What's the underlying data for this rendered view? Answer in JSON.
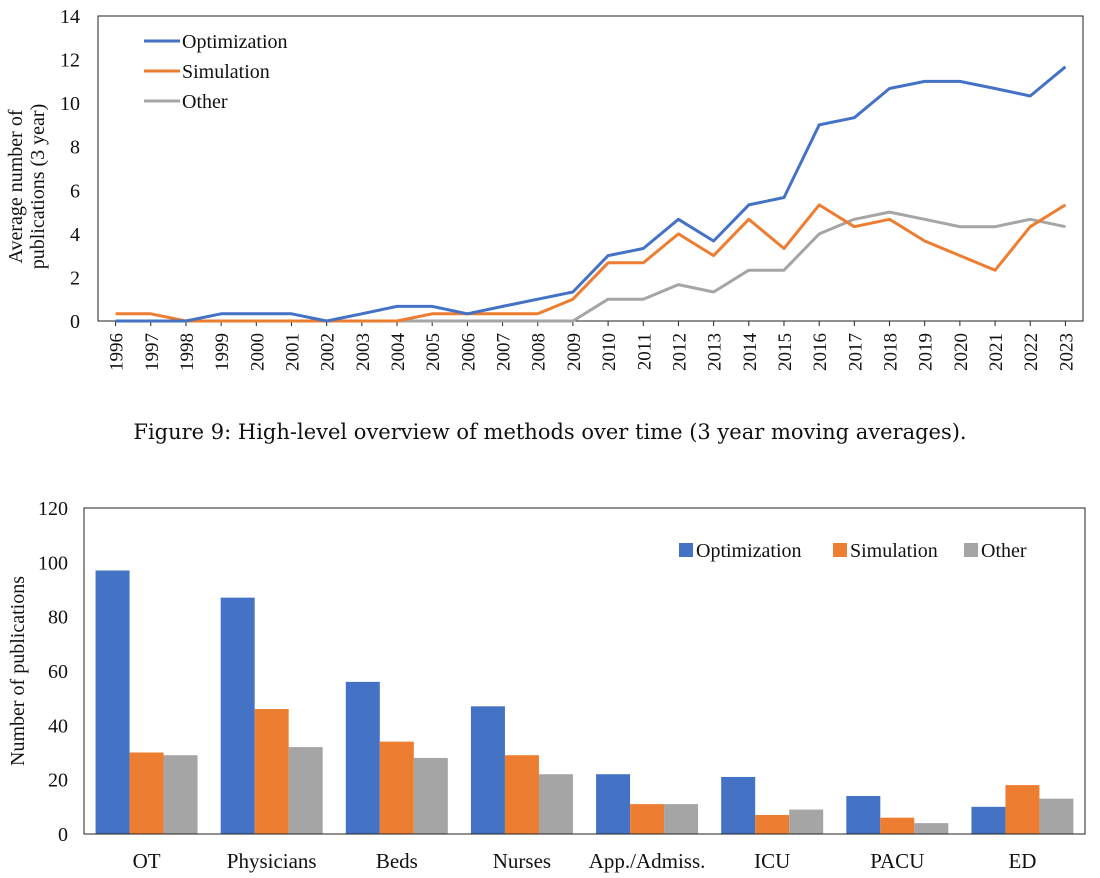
{
  "caption": "Figure 9: High-level overview of methods over time (3 year moving averages).",
  "colors": {
    "optimization": "#4472C4",
    "simulation": "#ED7D31",
    "other": "#A5A5A5"
  },
  "chart_data": [
    {
      "type": "line",
      "title": "",
      "xlabel": "",
      "ylabel": "Average number of publications (3 year)",
      "ylabel_lines": [
        "Average number of",
        "publications (3 year)"
      ],
      "ylim": [
        0,
        14
      ],
      "yticks": [
        0,
        2,
        4,
        6,
        8,
        10,
        12,
        14
      ],
      "legend_position": "top-left",
      "grid": false,
      "x": [
        "1996",
        "1997",
        "1998",
        "1999",
        "2000",
        "2001",
        "2002",
        "2003",
        "2004",
        "2005",
        "2006",
        "2007",
        "2008",
        "2009",
        "2010",
        "2011",
        "2012",
        "2013",
        "2014",
        "2015",
        "2016",
        "2017",
        "2018",
        "2019",
        "2020",
        "2021",
        "2022",
        "2023"
      ],
      "series": [
        {
          "name": "Optimization",
          "color": "#4472C4",
          "values": [
            0,
            0,
            0,
            0.33,
            0.33,
            0.33,
            0,
            0.33,
            0.67,
            0.67,
            0.33,
            0.67,
            1.0,
            1.33,
            3.0,
            3.33,
            4.67,
            3.67,
            5.33,
            5.67,
            9.0,
            9.33,
            10.67,
            11.0,
            11.0,
            10.67,
            10.33,
            11.67
          ]
        },
        {
          "name": "Simulation",
          "color": "#ED7D31",
          "values": [
            0.33,
            0.33,
            0,
            0,
            0,
            0,
            0,
            0,
            0,
            0.33,
            0.33,
            0.33,
            0.33,
            1.0,
            2.67,
            2.67,
            4.0,
            3.0,
            4.67,
            3.33,
            5.33,
            4.33,
            4.67,
            3.67,
            3.0,
            2.33,
            4.33,
            5.33
          ]
        },
        {
          "name": "Other",
          "color": "#A5A5A5",
          "values": [
            0,
            0,
            0,
            0,
            0,
            0,
            0,
            0,
            0,
            0,
            0,
            0,
            0,
            0,
            1.0,
            1.0,
            1.67,
            1.33,
            2.33,
            2.33,
            4.0,
            4.67,
            5.0,
            4.67,
            4.33,
            4.33,
            4.67,
            4.33
          ]
        }
      ]
    },
    {
      "type": "bar",
      "title": "",
      "xlabel": "",
      "ylabel": "Number of publications",
      "ylim": [
        0,
        120
      ],
      "yticks": [
        0,
        20,
        40,
        60,
        80,
        100,
        120
      ],
      "legend_position": "top-right",
      "grid": false,
      "categories": [
        "OT",
        "Physicians",
        "Beds",
        "Nurses",
        "App./Admiss.",
        "ICU",
        "PACU",
        "ED"
      ],
      "series": [
        {
          "name": "Optimization",
          "color": "#4472C4",
          "values": [
            97,
            87,
            56,
            47,
            22,
            21,
            14,
            10
          ]
        },
        {
          "name": "Simulation",
          "color": "#ED7D31",
          "values": [
            30,
            46,
            34,
            29,
            11,
            7,
            6,
            18
          ]
        },
        {
          "name": "Other",
          "color": "#A5A5A5",
          "values": [
            29,
            32,
            28,
            22,
            11,
            9,
            4,
            13
          ]
        }
      ]
    }
  ]
}
